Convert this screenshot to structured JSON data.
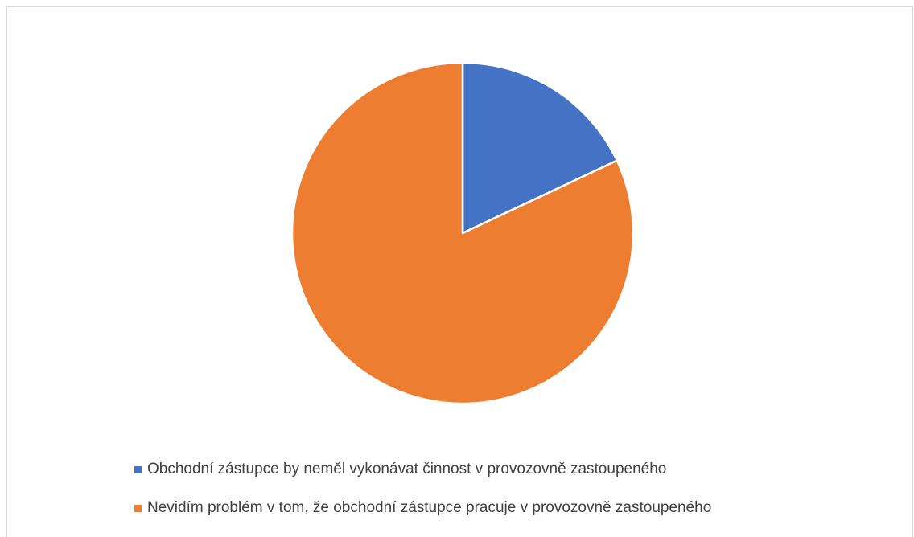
{
  "chart_data": {
    "type": "pie",
    "title": "",
    "slices": [
      {
        "label": "Obchodní zástupce by neměl vykonávat činnost v provozovně zastoupeného",
        "value": 18,
        "color": "#4472C4"
      },
      {
        "label": "Nevidím problém v tom, že obchodní zástupce pracuje v provozovně zastoupeného",
        "value": 82,
        "color": "#ED7D31"
      }
    ],
    "legend_position": "bottom-left",
    "start_angle": "12 o'clock",
    "direction": "clockwise"
  }
}
